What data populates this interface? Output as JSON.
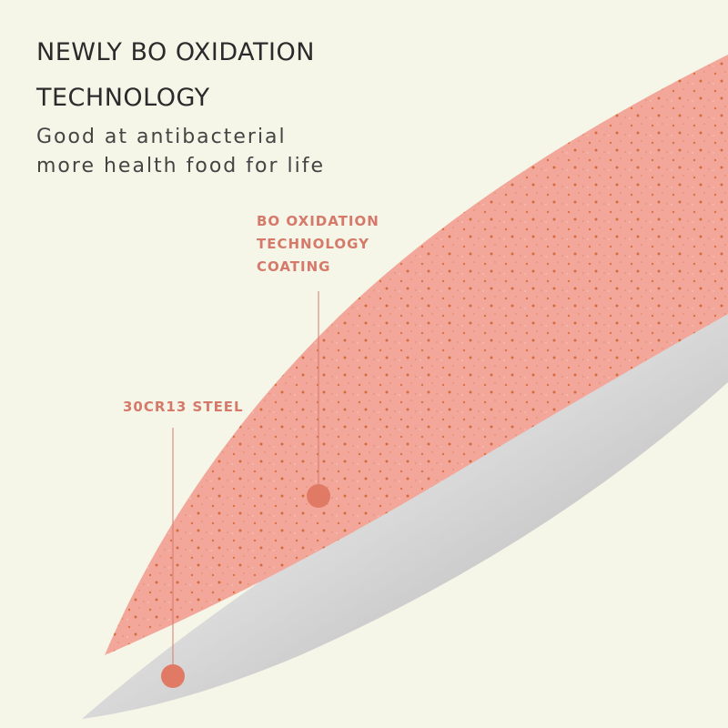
{
  "header": {
    "title_lines": [
      "NEWLY BO OXIDATION",
      "TECHNOLOGY"
    ],
    "subtitle_lines": [
      "Good at antibacterial",
      "more health food for life"
    ]
  },
  "callouts": [
    {
      "lines": [
        "BO OXIDATION",
        "TECHNOLOGY",
        "COATING"
      ]
    },
    {
      "lines": [
        "30CR13 STEEL"
      ]
    }
  ]
}
